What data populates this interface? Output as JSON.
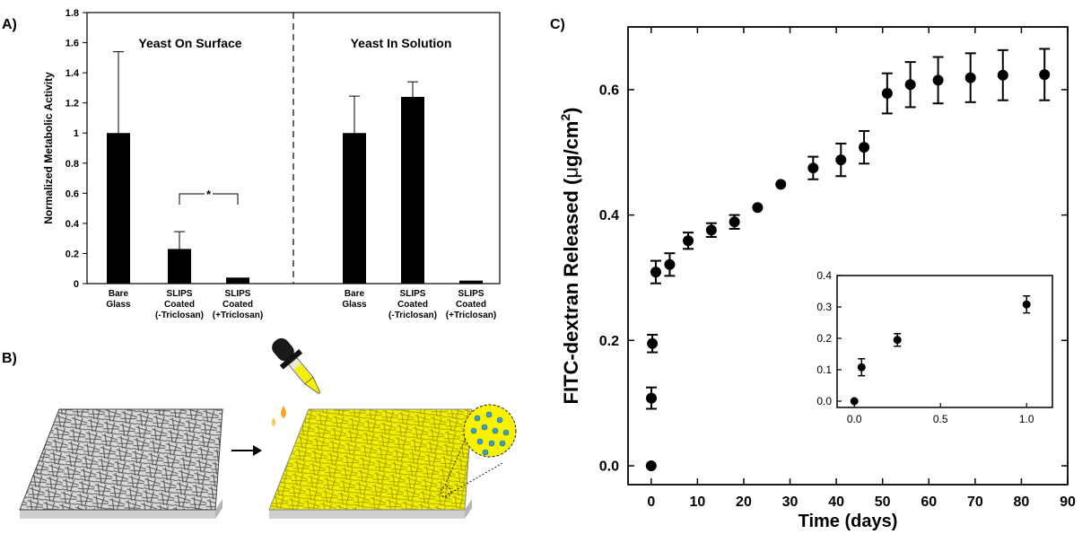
{
  "panel_labels": {
    "a": "A)",
    "b": "B)",
    "c": "C)"
  },
  "chart_data": [
    {
      "type": "bar",
      "panel": "A)",
      "ylabel": "Normalized Metabolic Activity",
      "ylim": [
        0,
        1.8
      ],
      "yticks": [
        "0",
        "0.2",
        "0.4",
        "0.6",
        "0.8",
        "1",
        "1.2",
        "1.4",
        "1.6",
        "1.8"
      ],
      "groups": [
        {
          "title": "Yeast On Surface",
          "bars": [
            {
              "label": [
                "Bare",
                "Glass"
              ],
              "value": 1.0,
              "error": 0.54
            },
            {
              "label": [
                "SLIPS",
                "Coated",
                "(-Triclosan)"
              ],
              "value": 0.23,
              "error": 0.115
            },
            {
              "label": [
                "SLIPS",
                "Coated",
                "(+Triclosan)"
              ],
              "value": 0.04,
              "error": 0.005
            }
          ]
        },
        {
          "title": "Yeast In Solution",
          "bars": [
            {
              "label": [
                "Bare",
                "Glass"
              ],
              "value": 1.0,
              "error": 0.245
            },
            {
              "label": [
                "SLIPS",
                "Coated",
                "(-Triclosan)"
              ],
              "value": 1.24,
              "error": 0.1
            },
            {
              "label": [
                "SLIPS",
                "Coated",
                "(+Triclosan)"
              ],
              "value": 0.02,
              "error": 0.003
            }
          ]
        }
      ],
      "significance": {
        "marker": "*",
        "between": [
          1,
          2
        ]
      }
    },
    {
      "type": "scatter",
      "panel": "C)",
      "xlabel": "Time (days)",
      "ylabel": "FITC-dextran Released (μg/cm²)",
      "ylabel_parts": {
        "main": "FITC-dextran Released (",
        "mu": "μ",
        "unit": "g/cm",
        "sup": "2",
        "close": ")"
      },
      "xlim": [
        -5,
        90
      ],
      "ylim": [
        -0.03,
        0.7
      ],
      "xticks": [
        "0",
        "10",
        "20",
        "30",
        "40",
        "50",
        "60",
        "70",
        "80",
        "90"
      ],
      "yticks": [
        "0.0",
        "0.2",
        "0.4",
        "0.6"
      ],
      "points": [
        {
          "x": 0,
          "y": 0.0,
          "err": 0.0
        },
        {
          "x": 0.042,
          "y": 0.108,
          "err": 0.017
        },
        {
          "x": 0.25,
          "y": 0.195,
          "err": 0.014
        },
        {
          "x": 1,
          "y": 0.309,
          "err": 0.018
        },
        {
          "x": 4,
          "y": 0.321,
          "err": 0.018
        },
        {
          "x": 8,
          "y": 0.359,
          "err": 0.013
        },
        {
          "x": 13,
          "y": 0.376,
          "err": 0.011
        },
        {
          "x": 18,
          "y": 0.389,
          "err": 0.011
        },
        {
          "x": 23,
          "y": 0.412,
          "err": 0.0
        },
        {
          "x": 28,
          "y": 0.449,
          "err": 0.0
        },
        {
          "x": 35,
          "y": 0.475,
          "err": 0.018
        },
        {
          "x": 41,
          "y": 0.488,
          "err": 0.026
        },
        {
          "x": 46,
          "y": 0.508,
          "err": 0.026
        },
        {
          "x": 51,
          "y": 0.594,
          "err": 0.032
        },
        {
          "x": 56,
          "y": 0.608,
          "err": 0.036
        },
        {
          "x": 62,
          "y": 0.615,
          "err": 0.037
        },
        {
          "x": 69,
          "y": 0.619,
          "err": 0.039
        },
        {
          "x": 76,
          "y": 0.623,
          "err": 0.04
        },
        {
          "x": 85,
          "y": 0.624,
          "err": 0.041
        }
      ],
      "inset": {
        "xlim": [
          -0.1,
          1.15
        ],
        "ylim": [
          -0.02,
          0.4
        ],
        "xticks": [
          "0.0",
          "0.5",
          "1.0"
        ],
        "yticks": [
          "0.0",
          "0.1",
          "0.2",
          "0.3",
          "0.4"
        ],
        "points": [
          {
            "x": 0,
            "y": 0.0,
            "err": 0.0
          },
          {
            "x": 0.042,
            "y": 0.108,
            "err": 0.027
          },
          {
            "x": 0.25,
            "y": 0.195,
            "err": 0.02
          },
          {
            "x": 1,
            "y": 0.308,
            "err": 0.027
          }
        ]
      }
    }
  ],
  "illustration_b": {
    "items": [
      "uncoated-fiber-mat",
      "arrow",
      "dropper",
      "coated-fiber-mat",
      "zoom-bubble"
    ],
    "colors": {
      "fiber": "#9a9a9a",
      "coating": "#f4f000",
      "droplet": "#f5a623",
      "bubble_fill": "#f8f200",
      "bubble_dots": "#3aa0c8"
    }
  }
}
